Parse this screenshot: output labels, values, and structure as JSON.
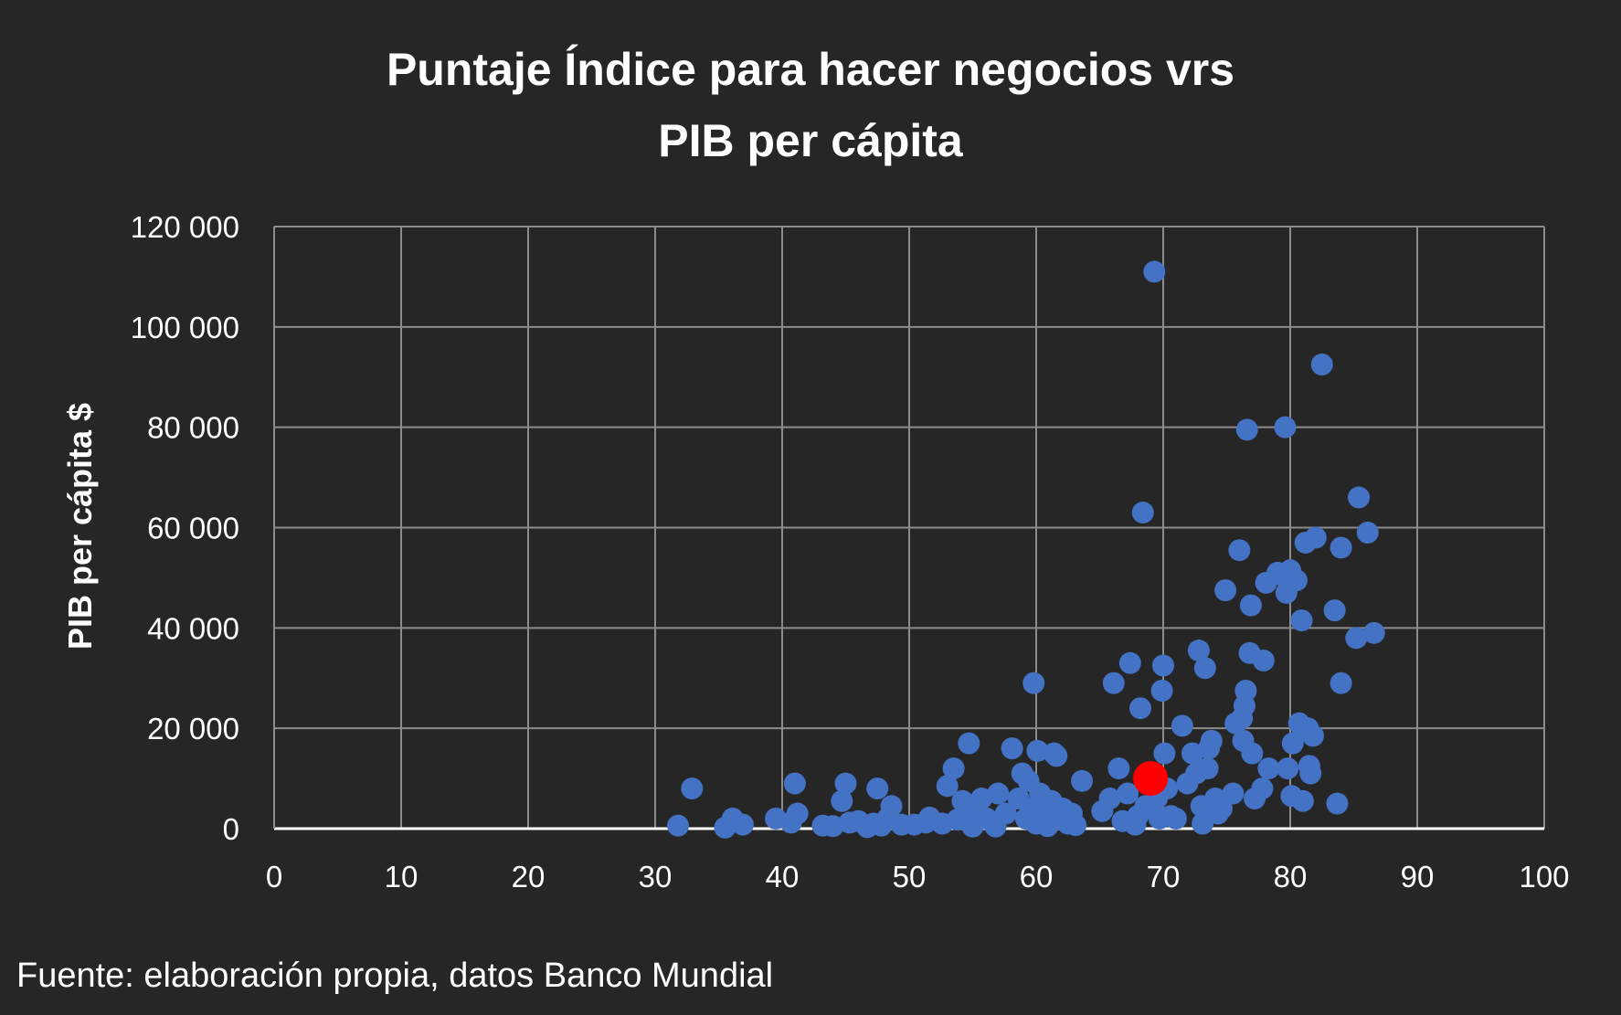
{
  "chart_data": {
    "type": "scatter",
    "title": "Puntaje Índice para hacer negocios vrs PIB per cápita",
    "title_lines": [
      "Puntaje Índice para hacer negocios vrs",
      "PIB per cápita"
    ],
    "xlabel": "",
    "ylabel": "PIB per cápita $",
    "xlim": [
      0,
      100
    ],
    "ylim": [
      0,
      120000
    ],
    "x_ticks": [
      0,
      10,
      20,
      30,
      40,
      50,
      60,
      70,
      80,
      90,
      100
    ],
    "x_tick_labels": [
      "0",
      "10",
      "20",
      "30",
      "40",
      "50",
      "60",
      "70",
      "80",
      "90",
      "100"
    ],
    "y_ticks": [
      0,
      20000,
      40000,
      60000,
      80000,
      100000,
      120000
    ],
    "y_tick_labels": [
      "0",
      "20 000",
      "40 000",
      "60 000",
      "80 000",
      "100 000",
      "120 000"
    ],
    "grid": true,
    "legend": "none",
    "colors": {
      "points": "#4472c4",
      "highlight": "#ff0000",
      "grid": "#8c8c8c",
      "axis": "#ffffff",
      "background": "#262626"
    },
    "series": [
      {
        "color": "#4472c4",
        "points": [
          [
            31.8,
            600
          ],
          [
            32.9,
            8000
          ],
          [
            35.5,
            200
          ],
          [
            36.1,
            2000
          ],
          [
            36.9,
            800
          ],
          [
            39.5,
            2000
          ],
          [
            40.7,
            1200
          ],
          [
            41.0,
            9000
          ],
          [
            41.2,
            3000
          ],
          [
            43.2,
            600
          ],
          [
            44.0,
            500
          ],
          [
            44.7,
            5500
          ],
          [
            45.0,
            9000
          ],
          [
            45.3,
            1200
          ],
          [
            46.0,
            1500
          ],
          [
            46.7,
            300
          ],
          [
            47.2,
            1000
          ],
          [
            47.5,
            8000
          ],
          [
            47.8,
            600
          ],
          [
            48.3,
            2000
          ],
          [
            48.6,
            4500
          ],
          [
            49.4,
            800
          ],
          [
            50.4,
            800
          ],
          [
            51.3,
            1200
          ],
          [
            51.6,
            2200
          ],
          [
            52.6,
            1000
          ],
          [
            53.0,
            8500
          ],
          [
            53.5,
            12000
          ],
          [
            53.8,
            1800
          ],
          [
            54.2,
            5500
          ],
          [
            54.7,
            17000
          ],
          [
            55.0,
            400
          ],
          [
            55.2,
            3000
          ],
          [
            55.7,
            6000
          ],
          [
            56.1,
            2000
          ],
          [
            56.8,
            400
          ],
          [
            57.0,
            7000
          ],
          [
            57.6,
            3000
          ],
          [
            58.1,
            16000
          ],
          [
            58.6,
            6000
          ],
          [
            58.9,
            11000
          ],
          [
            59.2,
            2000
          ],
          [
            59.4,
            9500
          ],
          [
            59.6,
            4000
          ],
          [
            59.8,
            29000
          ],
          [
            60.0,
            1000
          ],
          [
            60.1,
            15500
          ],
          [
            60.3,
            7000
          ],
          [
            60.6,
            3000
          ],
          [
            60.9,
            500
          ],
          [
            61.2,
            5500
          ],
          [
            61.4,
            15000
          ],
          [
            61.6,
            14500
          ],
          [
            61.8,
            2000
          ],
          [
            62.1,
            4000
          ],
          [
            62.5,
            1000
          ],
          [
            62.8,
            3000
          ],
          [
            63.1,
            700
          ],
          [
            63.6,
            9500
          ],
          [
            65.2,
            3500
          ],
          [
            65.8,
            6000
          ],
          [
            66.1,
            29000
          ],
          [
            66.5,
            12000
          ],
          [
            66.8,
            1500
          ],
          [
            67.2,
            7000
          ],
          [
            67.4,
            33000
          ],
          [
            67.8,
            800
          ],
          [
            68.0,
            2500
          ],
          [
            68.2,
            24000
          ],
          [
            68.4,
            63000
          ],
          [
            68.6,
            4500
          ],
          [
            69.3,
            111000
          ],
          [
            69.5,
            6000
          ],
          [
            69.7,
            2000
          ],
          [
            69.9,
            27500
          ],
          [
            70.0,
            32500
          ],
          [
            70.1,
            15000
          ],
          [
            70.3,
            8000
          ],
          [
            70.6,
            2500
          ],
          [
            71.0,
            2000
          ],
          [
            71.5,
            20500
          ],
          [
            71.9,
            9000
          ],
          [
            72.3,
            15000
          ],
          [
            72.6,
            11000
          ],
          [
            72.8,
            35500
          ],
          [
            73.0,
            4500
          ],
          [
            73.1,
            1000
          ],
          [
            73.3,
            32000
          ],
          [
            73.5,
            12000
          ],
          [
            73.6,
            16000
          ],
          [
            73.8,
            17500
          ],
          [
            74.1,
            6000
          ],
          [
            74.3,
            3000
          ],
          [
            74.6,
            4000
          ],
          [
            74.9,
            47500
          ],
          [
            75.5,
            7000
          ],
          [
            75.7,
            21000
          ],
          [
            76.0,
            55500
          ],
          [
            76.2,
            22000
          ],
          [
            76.3,
            17500
          ],
          [
            76.4,
            24500
          ],
          [
            76.5,
            27500
          ],
          [
            76.6,
            79500
          ],
          [
            76.8,
            35000
          ],
          [
            76.9,
            44500
          ],
          [
            77.0,
            15000
          ],
          [
            77.2,
            6000
          ],
          [
            77.8,
            8000
          ],
          [
            77.9,
            33500
          ],
          [
            78.1,
            49000
          ],
          [
            78.3,
            12000
          ],
          [
            79.0,
            51000
          ],
          [
            79.4,
            50500
          ],
          [
            79.6,
            80000
          ],
          [
            79.7,
            47000
          ],
          [
            79.8,
            12000
          ],
          [
            80.0,
            51500
          ],
          [
            80.1,
            6500
          ],
          [
            80.2,
            17000
          ],
          [
            80.5,
            49500
          ],
          [
            80.7,
            21000
          ],
          [
            80.9,
            41500
          ],
          [
            81.0,
            5500
          ],
          [
            81.2,
            57000
          ],
          [
            81.4,
            20000
          ],
          [
            81.5,
            12500
          ],
          [
            81.6,
            11000
          ],
          [
            81.8,
            18500
          ],
          [
            82.0,
            58000
          ],
          [
            82.5,
            92500
          ],
          [
            83.5,
            43500
          ],
          [
            83.7,
            5000
          ],
          [
            84.0,
            29000
          ],
          [
            84.0,
            56000
          ],
          [
            85.2,
            38000
          ],
          [
            85.4,
            66000
          ],
          [
            86.1,
            59000
          ],
          [
            86.6,
            39000
          ]
        ]
      },
      {
        "color": "#ff0000",
        "points": [
          [
            69.0,
            10000
          ]
        ]
      }
    ]
  },
  "source": "Fuente: elaboración propia, datos Banco Mundial"
}
